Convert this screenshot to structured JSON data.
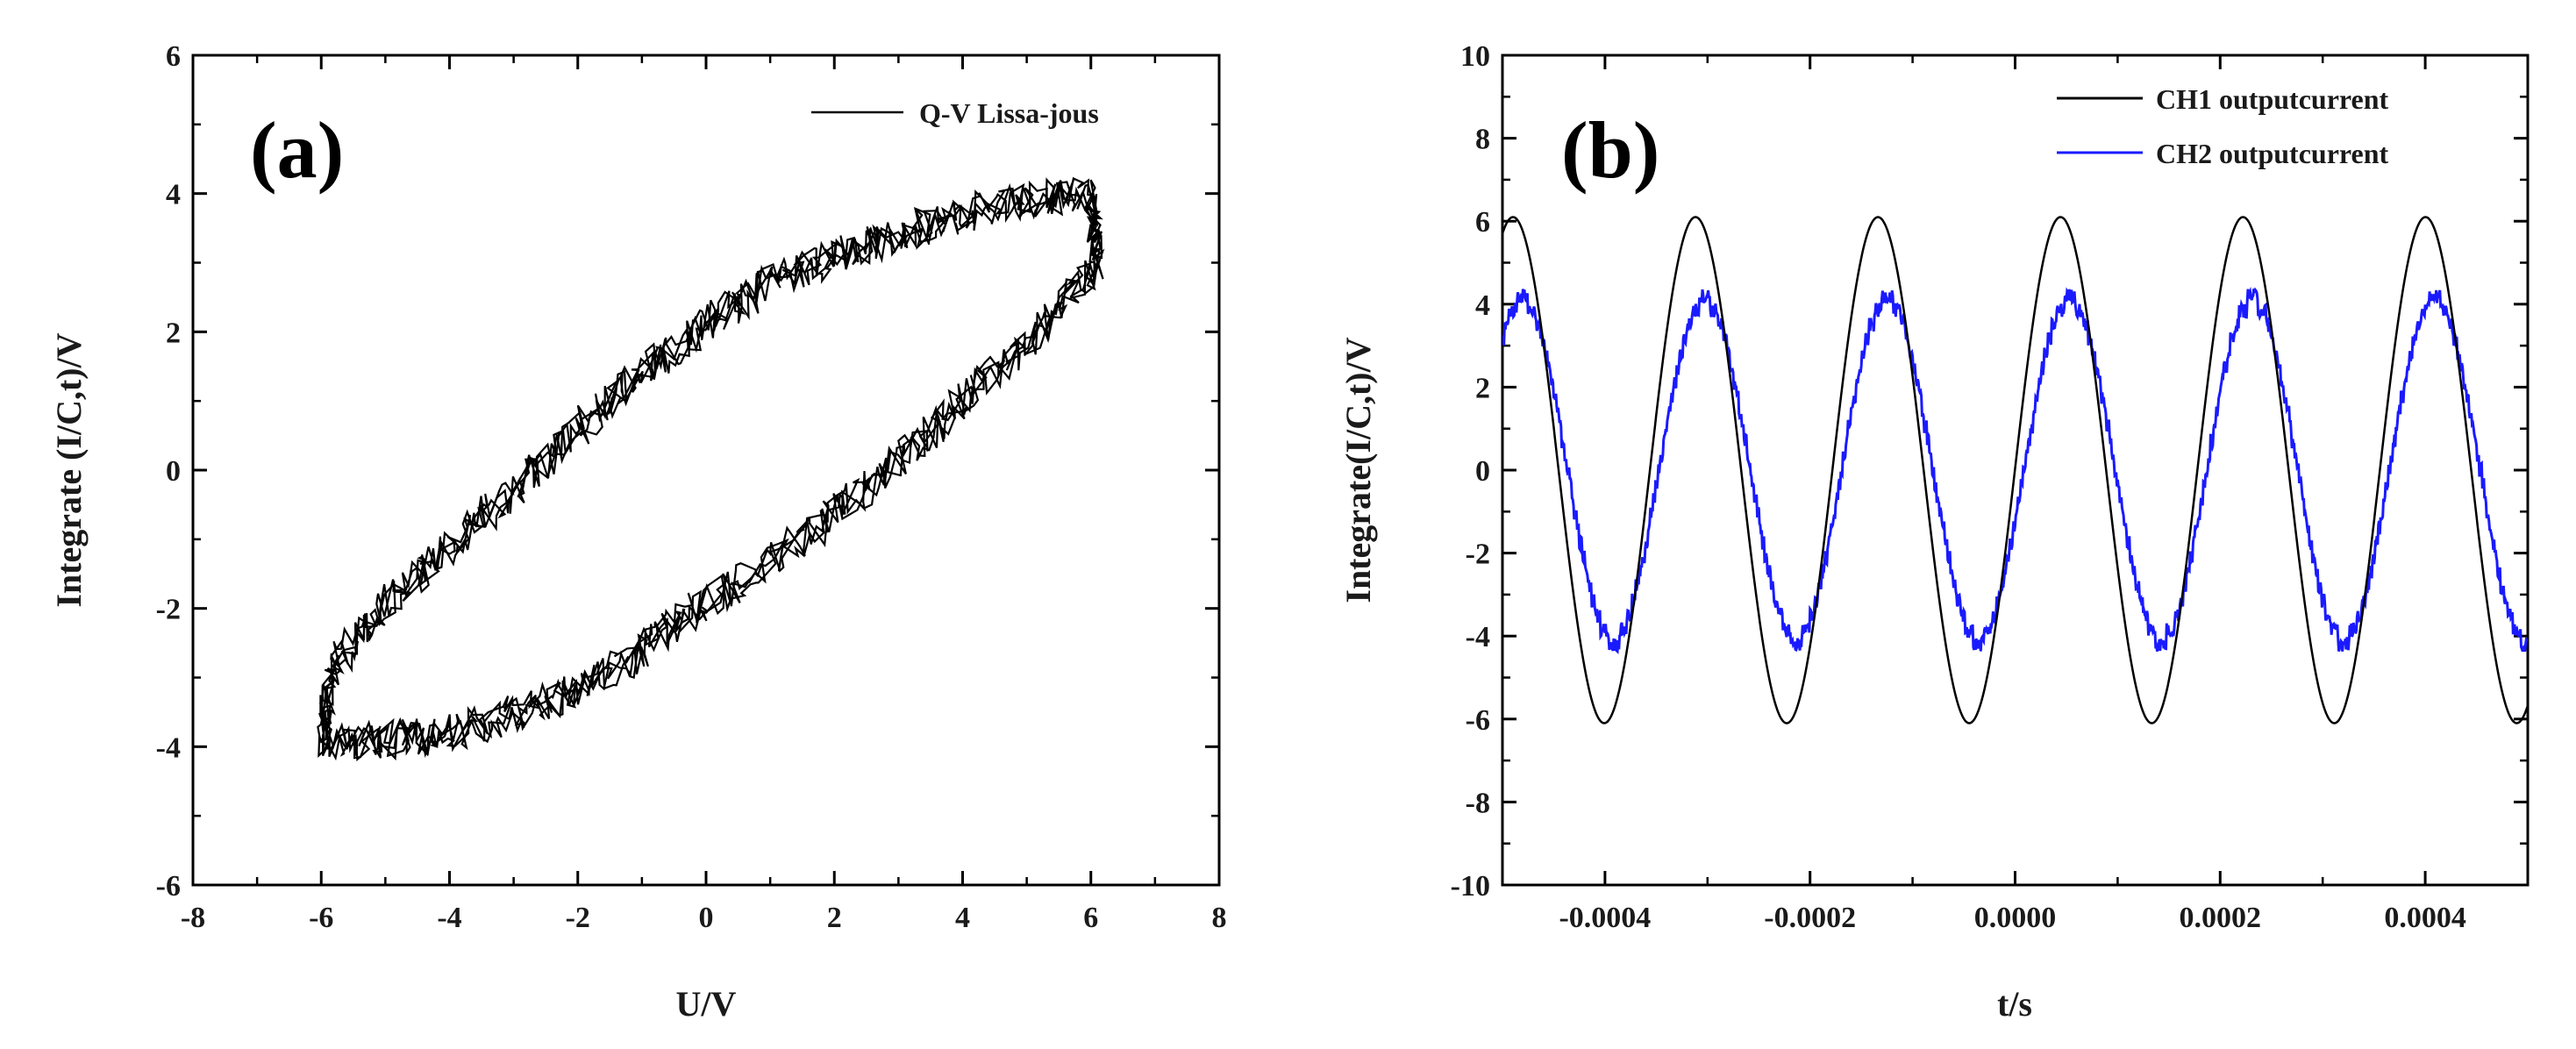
{
  "chart_data": [
    {
      "type": "line",
      "panel": "(a)",
      "xlabel": "U/V",
      "ylabel": "Integrate (I/C,t)/V",
      "xlim": [
        -8,
        8
      ],
      "ylim": [
        -6,
        6
      ],
      "xticks": [
        "-8",
        "-6",
        "-4",
        "-2",
        "0",
        "2",
        "4",
        "6",
        "8"
      ],
      "yticks": [
        "-6",
        "-4",
        "-2",
        "0",
        "2",
        "4",
        "6"
      ],
      "legend": {
        "position": "top-right",
        "entries": [
          "Q-V Lissa-jous"
        ]
      },
      "series": [
        {
          "name": "Q-V Lissa-jous",
          "color": "#000000",
          "description": "noisy closed Lissajous loop",
          "loop_points": [
            [
              -6.0,
              -4.0
            ],
            [
              -5.8,
              -2.8
            ],
            [
              -5.0,
              -1.9
            ],
            [
              -4.0,
              -1.1
            ],
            [
              -3.0,
              -0.3
            ],
            [
              -2.0,
              0.6
            ],
            [
              -1.0,
              1.4
            ],
            [
              0.0,
              2.1
            ],
            [
              1.0,
              2.7
            ],
            [
              2.0,
              3.1
            ],
            [
              3.0,
              3.4
            ],
            [
              4.0,
              3.7
            ],
            [
              5.0,
              3.9
            ],
            [
              6.0,
              4.0
            ],
            [
              6.1,
              3.0
            ],
            [
              5.2,
              2.0
            ],
            [
              4.2,
              1.2
            ],
            [
              3.3,
              0.4
            ],
            [
              2.3,
              -0.4
            ],
            [
              1.2,
              -1.2
            ],
            [
              0.0,
              -1.9
            ],
            [
              -1.0,
              -2.6
            ],
            [
              -2.0,
              -3.2
            ],
            [
              -3.0,
              -3.5
            ],
            [
              -4.0,
              -3.8
            ],
            [
              -5.0,
              -3.9
            ],
            [
              -6.0,
              -4.0
            ]
          ],
          "noise_amplitude": 0.35
        }
      ]
    },
    {
      "type": "line",
      "panel": "(b)",
      "xlabel": "t/s",
      "ylabel": "Integrate(I/C,t)/V",
      "xlim": [
        -0.0005,
        0.0005
      ],
      "ylim": [
        -10,
        10
      ],
      "xticks": [
        "-0.0004",
        "-0.0002",
        "0.0000",
        "0.0002",
        "0.0004"
      ],
      "yticks": [
        "-10",
        "-8",
        "-6",
        "-4",
        "-2",
        "0",
        "2",
        "4",
        "6",
        "8",
        "10"
      ],
      "legend": {
        "position": "top-right",
        "entries": [
          "CH1 outputcurrent",
          "CH2 outputcurrent"
        ]
      },
      "series": [
        {
          "name": "CH1 outputcurrent",
          "color": "#000000",
          "amplitude": 6.1,
          "period": 0.000178,
          "peak_time": 4.43e-05
        },
        {
          "name": "CH2 outputcurrent",
          "color": "#1a1aff",
          "amplitude": 4.1,
          "period": 0.000178,
          "peak_time": 5.33e-05,
          "quantization_step": 0.35
        }
      ]
    }
  ]
}
